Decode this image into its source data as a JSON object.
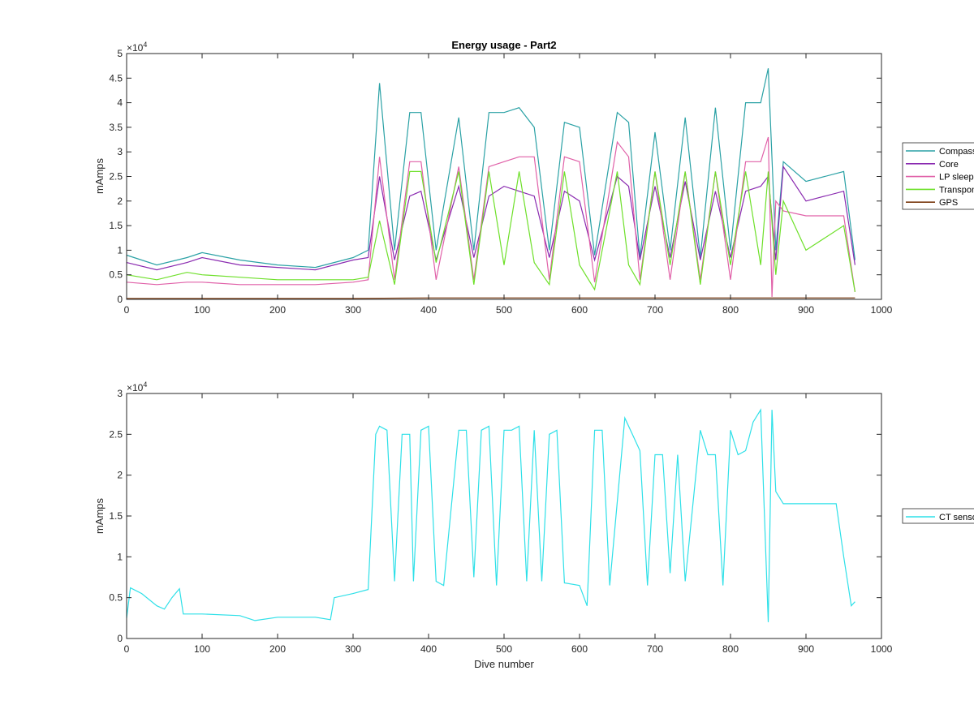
{
  "chart_data": [
    {
      "type": "line",
      "title": "Energy usage - Part2",
      "xlabel": "",
      "ylabel": "mAmps",
      "exponent_base": "×10",
      "exponent_power": "4",
      "xlim": [
        0,
        1000
      ],
      "ylim": [
        0,
        50000
      ],
      "xticks": [
        0,
        100,
        200,
        300,
        400,
        500,
        600,
        700,
        800,
        900,
        1000
      ],
      "xtick_labels": [
        "0",
        "100",
        "200",
        "300",
        "400",
        "500",
        "600",
        "700",
        "800",
        "900",
        "1000"
      ],
      "yticks": [
        0,
        5000,
        10000,
        15000,
        20000,
        25000,
        30000,
        35000,
        40000,
        45000,
        50000
      ],
      "ytick_labels": [
        "0",
        "0.5",
        "1",
        "1.5",
        "2",
        "2.5",
        "3",
        "3.5",
        "4",
        "4.5",
        "5"
      ],
      "legend_position": "outside-right",
      "grid": false,
      "series": [
        {
          "name": "Compass",
          "color": "#2aa1a5",
          "x": [
            0,
            40,
            80,
            100,
            150,
            200,
            250,
            300,
            320,
            335,
            355,
            375,
            390,
            410,
            440,
            460,
            480,
            500,
            520,
            540,
            560,
            580,
            600,
            620,
            650,
            665,
            680,
            700,
            720,
            740,
            760,
            780,
            800,
            820,
            840,
            850,
            860,
            870,
            900,
            950,
            965
          ],
          "y": [
            9000,
            7000,
            8500,
            9500,
            8000,
            7000,
            6500,
            8500,
            10000,
            44000,
            10000,
            38000,
            38000,
            10000,
            37000,
            10000,
            38000,
            38000,
            39000,
            35000,
            10000,
            36000,
            35000,
            9000,
            38000,
            36000,
            8500,
            34000,
            10000,
            37000,
            8500,
            39000,
            10000,
            40000,
            40000,
            47000,
            10000,
            28000,
            24000,
            26000,
            8000
          ]
        },
        {
          "name": "Core",
          "color": "#8a2ab0",
          "x": [
            0,
            40,
            80,
            100,
            150,
            200,
            250,
            300,
            320,
            335,
            355,
            375,
            390,
            410,
            440,
            460,
            480,
            500,
            520,
            540,
            560,
            580,
            600,
            620,
            650,
            665,
            680,
            700,
            720,
            740,
            760,
            780,
            800,
            820,
            840,
            850,
            860,
            870,
            900,
            950,
            965
          ],
          "y": [
            7500,
            6000,
            7500,
            8500,
            7000,
            6500,
            6000,
            8000,
            8500,
            25000,
            8000,
            21000,
            22000,
            8000,
            23000,
            8500,
            21000,
            23000,
            22000,
            21000,
            8500,
            22000,
            20000,
            8000,
            25000,
            23000,
            8000,
            23000,
            8500,
            24000,
            8000,
            22000,
            8500,
            22000,
            23000,
            25000,
            8000,
            27000,
            20000,
            22000,
            7000
          ]
        },
        {
          "name": "LP sleep",
          "color": "#e060a8",
          "x": [
            0,
            40,
            80,
            100,
            150,
            200,
            250,
            300,
            320,
            335,
            355,
            375,
            390,
            410,
            440,
            460,
            480,
            500,
            520,
            540,
            560,
            580,
            600,
            620,
            650,
            665,
            680,
            700,
            720,
            740,
            760,
            780,
            800,
            820,
            840,
            850,
            855,
            860,
            870,
            900,
            950,
            965
          ],
          "y": [
            3500,
            3000,
            3500,
            3500,
            3000,
            3000,
            3000,
            3500,
            4000,
            29000,
            4000,
            28000,
            28000,
            4000,
            27000,
            4000,
            27000,
            28000,
            29000,
            29000,
            4000,
            29000,
            28000,
            3500,
            32000,
            29000,
            4000,
            26000,
            4000,
            26000,
            4000,
            26000,
            4000,
            28000,
            28000,
            33000,
            500,
            20000,
            18000,
            17000,
            17000,
            1500
          ]
        },
        {
          "name": "Transponder",
          "color": "#6ee02a",
          "x": [
            0,
            40,
            80,
            100,
            150,
            200,
            250,
            300,
            320,
            335,
            355,
            375,
            390,
            410,
            440,
            460,
            480,
            500,
            520,
            540,
            560,
            580,
            600,
            620,
            650,
            665,
            680,
            700,
            720,
            740,
            760,
            780,
            800,
            820,
            840,
            850,
            860,
            870,
            900,
            950,
            965
          ],
          "y": [
            5000,
            4000,
            5500,
            5000,
            4500,
            4000,
            4000,
            4000,
            4500,
            16000,
            3000,
            26000,
            26000,
            7500,
            26000,
            3000,
            26000,
            7000,
            26000,
            7500,
            3000,
            26000,
            7000,
            2000,
            26000,
            7000,
            3000,
            26000,
            7000,
            26000,
            3000,
            26000,
            7000,
            26000,
            7000,
            26000,
            5000,
            20000,
            10000,
            15000,
            1500
          ]
        },
        {
          "name": "GPS",
          "color": "#7a3a10",
          "x": [
            0,
            100,
            200,
            300,
            400,
            500,
            600,
            700,
            800,
            900,
            965
          ],
          "y": [
            200,
            200,
            200,
            200,
            300,
            300,
            300,
            300,
            300,
            300,
            300
          ]
        }
      ]
    },
    {
      "type": "line",
      "title": "",
      "xlabel": "Dive number",
      "ylabel": "mAmps",
      "exponent_base": "×10",
      "exponent_power": "4",
      "xlim": [
        0,
        1000
      ],
      "ylim": [
        0,
        30000
      ],
      "xticks": [
        0,
        100,
        200,
        300,
        400,
        500,
        600,
        700,
        800,
        900,
        1000
      ],
      "xtick_labels": [
        "0",
        "100",
        "200",
        "300",
        "400",
        "500",
        "600",
        "700",
        "800",
        "900",
        "1000"
      ],
      "yticks": [
        0,
        5000,
        10000,
        15000,
        20000,
        25000,
        30000
      ],
      "ytick_labels": [
        "0",
        "0.5",
        "1",
        "1.5",
        "2",
        "2.5",
        "3"
      ],
      "legend_position": "outside-right",
      "grid": false,
      "series": [
        {
          "name": "CT sensor",
          "color": "#2ee0e8",
          "x": [
            0,
            5,
            20,
            40,
            50,
            60,
            70,
            75,
            80,
            100,
            150,
            170,
            200,
            250,
            270,
            275,
            300,
            320,
            330,
            335,
            345,
            355,
            365,
            375,
            380,
            390,
            400,
            410,
            420,
            440,
            450,
            460,
            470,
            480,
            490,
            500,
            510,
            520,
            530,
            540,
            550,
            560,
            570,
            580,
            600,
            610,
            620,
            630,
            640,
            660,
            670,
            680,
            690,
            700,
            710,
            720,
            730,
            740,
            760,
            770,
            780,
            790,
            800,
            810,
            820,
            830,
            840,
            850,
            855,
            860,
            870,
            900,
            940,
            950,
            960,
            965
          ],
          "y": [
            2500,
            6200,
            5500,
            4000,
            3600,
            5000,
            6100,
            3000,
            3000,
            3000,
            2800,
            2200,
            2600,
            2600,
            2300,
            5000,
            5500,
            6000,
            25000,
            26000,
            25500,
            7000,
            25000,
            25000,
            7000,
            25500,
            26000,
            7000,
            6500,
            25500,
            25500,
            7500,
            25500,
            26000,
            6500,
            25500,
            25500,
            26000,
            7000,
            25500,
            7000,
            25000,
            25500,
            6800,
            6500,
            4000,
            25500,
            25500,
            6500,
            27000,
            25000,
            23000,
            6500,
            22500,
            22500,
            8000,
            22500,
            7000,
            25500,
            22500,
            22500,
            6500,
            25500,
            22500,
            23000,
            26500,
            28000,
            2000,
            28000,
            18000,
            16500,
            16500,
            16500,
            10000,
            4000,
            4500
          ]
        }
      ]
    }
  ]
}
